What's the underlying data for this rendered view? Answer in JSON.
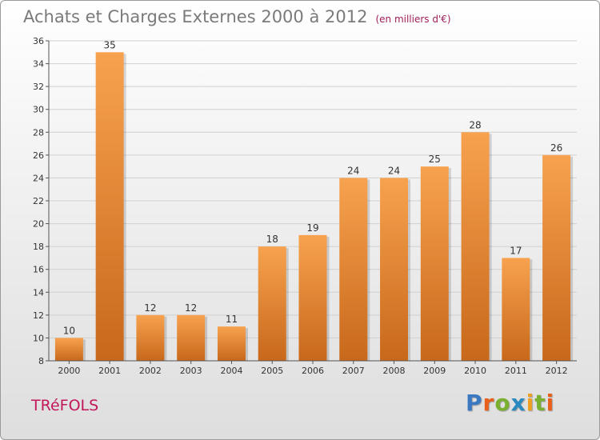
{
  "header": {
    "title": "Achats et Charges Externes 2000 à 2012",
    "subtitle": "(en milliers d'€)"
  },
  "footer": {
    "place": "TRéFOLS",
    "brand": "Proxiti"
  },
  "colors": {
    "bar_light": "#f7a24f",
    "bar_dark": "#c8681a",
    "grid": "#d0d0d0",
    "axis": "#555555"
  },
  "chart_data": {
    "type": "bar",
    "title": "Achats et Charges Externes 2000 à 2012",
    "subtitle": "(en milliers d'€)",
    "xlabel": "",
    "ylabel": "",
    "categories": [
      "2000",
      "2001",
      "2002",
      "2003",
      "2004",
      "2005",
      "2006",
      "2007",
      "2008",
      "2009",
      "2010",
      "2011",
      "2012"
    ],
    "values": [
      10,
      35,
      12,
      12,
      11,
      18,
      19,
      24,
      24,
      25,
      28,
      17,
      26
    ],
    "ylim": [
      8,
      36
    ],
    "yticks": [
      8,
      10,
      12,
      14,
      16,
      18,
      20,
      22,
      24,
      26,
      28,
      30,
      32,
      34,
      36
    ],
    "grid": true,
    "data_labels": true
  }
}
